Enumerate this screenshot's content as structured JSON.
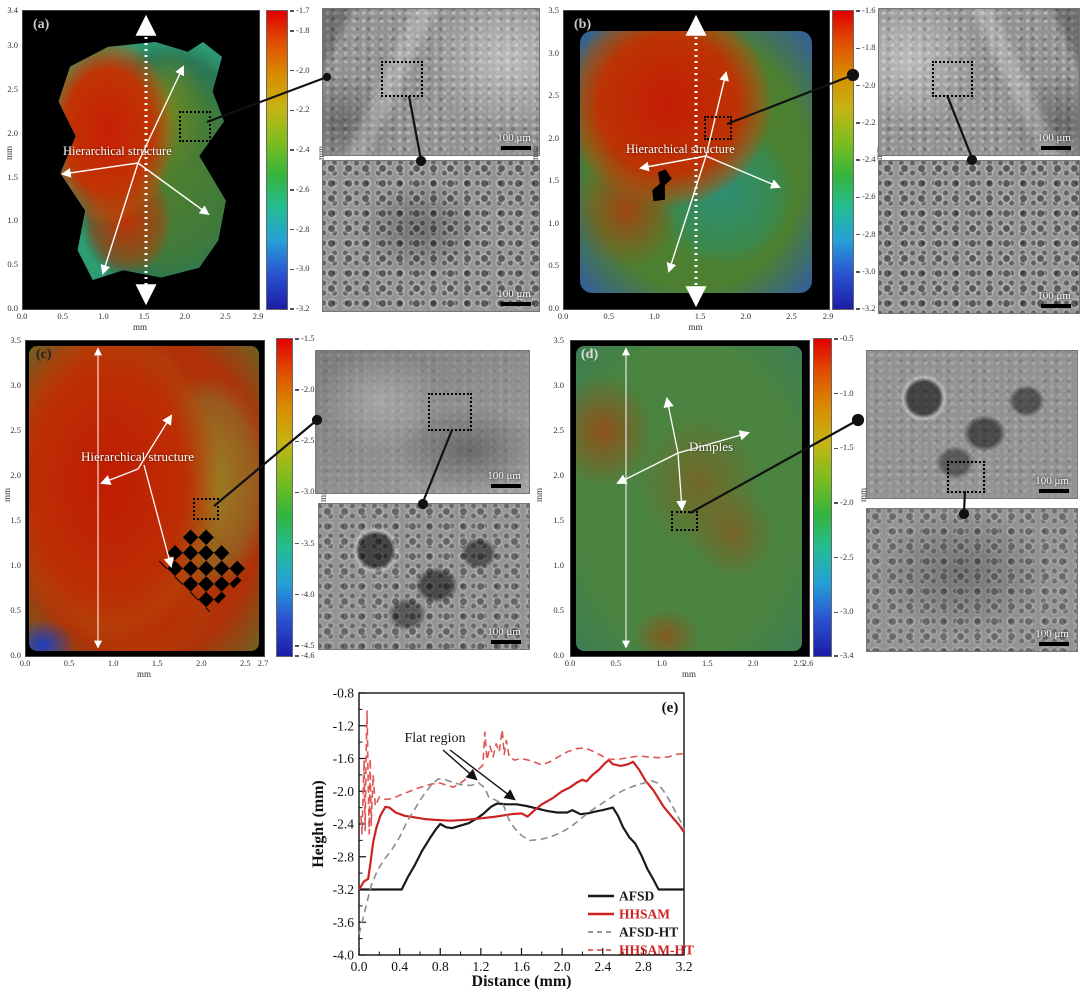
{
  "figure": {
    "panels": [
      {
        "id": "a",
        "label": "(a)",
        "annotation": "Hierarchical structure",
        "axis_unit": "mm",
        "x_ticks": [
          "0.0",
          "0.5",
          "1.0",
          "1.5",
          "2.0",
          "2.5",
          "2.9"
        ],
        "y_ticks": [
          "3.4",
          "3.0",
          "2.5",
          "2.0",
          "1.5",
          "1.0",
          "0.5",
          "0.0"
        ],
        "colorbar_unit": "mm",
        "colorbar_ticks": [
          "-1.7",
          "-1.8",
          "-2.0",
          "-2.2",
          "-2.4",
          "-2.6",
          "-2.8",
          "-3.0",
          "-3.2"
        ],
        "sem_scale": "100 μm"
      },
      {
        "id": "b",
        "label": "(b)",
        "annotation": "Hierarchical structure",
        "axis_unit": "mm",
        "x_ticks": [
          "0.0",
          "0.5",
          "1.0",
          "1.5",
          "2.0",
          "2.5",
          "2.9"
        ],
        "y_ticks": [
          "3.5",
          "3.0",
          "2.5",
          "2.0",
          "1.5",
          "1.0",
          "0.5",
          "0.0"
        ],
        "colorbar_unit": "mm",
        "colorbar_ticks": [
          "-1.6",
          "-1.8",
          "-2.0",
          "-2.2",
          "-2.4",
          "-2.6",
          "-2.8",
          "-3.0",
          "-3.2"
        ],
        "sem_scale": "100 μm"
      },
      {
        "id": "c",
        "label": "(c)",
        "annotation": "Hierarchical structure",
        "axis_unit": "mm",
        "x_ticks": [
          "0.0",
          "0.5",
          "1.0",
          "1.5",
          "2.0",
          "2.5",
          "2.7"
        ],
        "y_ticks": [
          "3.5",
          "3.0",
          "2.5",
          "2.0",
          "1.5",
          "1.0",
          "0.5",
          "0.0"
        ],
        "colorbar_unit": "mm",
        "colorbar_ticks": [
          "-1.5",
          "-2.0",
          "-2.5",
          "-3.0",
          "-3.5",
          "-4.0",
          "-4.5",
          "-4.6"
        ],
        "sem_scale": "100 μm"
      },
      {
        "id": "d",
        "label": "(d)",
        "annotation": "Dimples",
        "axis_unit": "mm",
        "x_ticks": [
          "0.0",
          "0.5",
          "1.0",
          "1.5",
          "2.0",
          "2.5",
          "2.6"
        ],
        "y_ticks": [
          "3.5",
          "3.0",
          "2.5",
          "2.0",
          "1.5",
          "1.0",
          "0.5",
          "0.0"
        ],
        "colorbar_unit": "mm",
        "colorbar_ticks": [
          "-0.5",
          "-1.0",
          "-1.5",
          "-2.0",
          "-2.5",
          "-3.0",
          "-3.4"
        ],
        "sem_scale": "100 μm"
      }
    ]
  },
  "chart_data": {
    "type": "line",
    "panel_label": "(e)",
    "xlabel": "Distance (mm)",
    "ylabel": "Height (mm)",
    "xlim": [
      0,
      3.2
    ],
    "ylim": [
      -4.0,
      -0.8
    ],
    "x_ticks": [
      "0.0",
      "0.4",
      "0.8",
      "1.2",
      "1.6",
      "2.0",
      "2.4",
      "2.8",
      "3.2"
    ],
    "y_ticks": [
      "-0.8",
      "-1.2",
      "-1.6",
      "-2.0",
      "-2.4",
      "-2.8",
      "-3.2",
      "-3.6",
      "-4.0"
    ],
    "grid": false,
    "legend_position": "lower right",
    "annotation": {
      "text": "Flat region"
    },
    "series": [
      {
        "name": "AFSD",
        "color": "#1a1a1a",
        "label_color": "#1a1a1a",
        "style": "solid",
        "points": [
          [
            0,
            -3.2
          ],
          [
            0.42,
            -3.2
          ],
          [
            0.48,
            -3.05
          ],
          [
            0.55,
            -2.9
          ],
          [
            0.62,
            -2.73
          ],
          [
            0.7,
            -2.57
          ],
          [
            0.76,
            -2.46
          ],
          [
            0.8,
            -2.4
          ],
          [
            0.86,
            -2.44
          ],
          [
            0.92,
            -2.45
          ],
          [
            1.0,
            -2.42
          ],
          [
            1.08,
            -2.39
          ],
          [
            1.15,
            -2.34
          ],
          [
            1.22,
            -2.28
          ],
          [
            1.3,
            -2.19
          ],
          [
            1.36,
            -2.15
          ],
          [
            1.45,
            -2.16
          ],
          [
            1.55,
            -2.16
          ],
          [
            1.65,
            -2.18
          ],
          [
            1.75,
            -2.21
          ],
          [
            1.85,
            -2.24
          ],
          [
            1.95,
            -2.26
          ],
          [
            2.05,
            -2.26
          ],
          [
            2.1,
            -2.23
          ],
          [
            2.18,
            -2.28
          ],
          [
            2.25,
            -2.27
          ],
          [
            2.32,
            -2.25
          ],
          [
            2.4,
            -2.23
          ],
          [
            2.5,
            -2.2
          ],
          [
            2.55,
            -2.3
          ],
          [
            2.6,
            -2.44
          ],
          [
            2.66,
            -2.56
          ],
          [
            2.72,
            -2.64
          ],
          [
            2.78,
            -2.78
          ],
          [
            2.84,
            -2.95
          ],
          [
            2.9,
            -3.08
          ],
          [
            2.95,
            -3.2
          ],
          [
            3.2,
            -3.2
          ]
        ]
      },
      {
        "name": "HHSAM",
        "color": "#cc2222",
        "label_color": "#cc2222",
        "style": "solid",
        "points": [
          [
            0,
            -3.2
          ],
          [
            0.05,
            -3.1
          ],
          [
            0.09,
            -3.07
          ],
          [
            0.11,
            -2.9
          ],
          [
            0.14,
            -2.62
          ],
          [
            0.17,
            -2.45
          ],
          [
            0.21,
            -2.3
          ],
          [
            0.26,
            -2.19
          ],
          [
            0.3,
            -2.2
          ],
          [
            0.36,
            -2.26
          ],
          [
            0.45,
            -2.3
          ],
          [
            0.55,
            -2.32
          ],
          [
            0.65,
            -2.34
          ],
          [
            0.75,
            -2.35
          ],
          [
            0.9,
            -2.36
          ],
          [
            1.05,
            -2.35
          ],
          [
            1.2,
            -2.33
          ],
          [
            1.35,
            -2.31
          ],
          [
            1.5,
            -2.28
          ],
          [
            1.6,
            -2.27
          ],
          [
            1.66,
            -2.31
          ],
          [
            1.72,
            -2.24
          ],
          [
            1.8,
            -2.16
          ],
          [
            1.9,
            -2.09
          ],
          [
            2.0,
            -2.0
          ],
          [
            2.08,
            -1.95
          ],
          [
            2.15,
            -1.89
          ],
          [
            2.2,
            -1.86
          ],
          [
            2.24,
            -1.88
          ],
          [
            2.3,
            -1.8
          ],
          [
            2.36,
            -1.74
          ],
          [
            2.42,
            -1.66
          ],
          [
            2.46,
            -1.62
          ],
          [
            2.5,
            -1.67
          ],
          [
            2.58,
            -1.69
          ],
          [
            2.65,
            -1.67
          ],
          [
            2.7,
            -1.64
          ],
          [
            2.76,
            -1.74
          ],
          [
            2.82,
            -1.87
          ],
          [
            2.9,
            -1.99
          ],
          [
            3.0,
            -2.19
          ],
          [
            3.08,
            -2.31
          ],
          [
            3.15,
            -2.41
          ],
          [
            3.2,
            -2.5
          ]
        ]
      },
      {
        "name": "AFSD-HT",
        "color": "#8c8c8c",
        "label_color": "#1a1a1a",
        "style": "dashed",
        "points": [
          [
            0,
            -3.75
          ],
          [
            0.06,
            -3.45
          ],
          [
            0.12,
            -3.15
          ],
          [
            0.18,
            -2.97
          ],
          [
            0.25,
            -2.83
          ],
          [
            0.32,
            -2.72
          ],
          [
            0.4,
            -2.56
          ],
          [
            0.47,
            -2.38
          ],
          [
            0.54,
            -2.24
          ],
          [
            0.6,
            -2.11
          ],
          [
            0.67,
            -1.99
          ],
          [
            0.73,
            -1.9
          ],
          [
            0.78,
            -1.85
          ],
          [
            0.85,
            -1.86
          ],
          [
            0.92,
            -1.89
          ],
          [
            1.0,
            -1.92
          ],
          [
            1.1,
            -1.93
          ],
          [
            1.18,
            -1.9
          ],
          [
            1.24,
            -1.96
          ],
          [
            1.28,
            -2.08
          ],
          [
            1.35,
            -2.11
          ],
          [
            1.42,
            -2.16
          ],
          [
            1.47,
            -2.33
          ],
          [
            1.53,
            -2.45
          ],
          [
            1.6,
            -2.54
          ],
          [
            1.68,
            -2.6
          ],
          [
            1.78,
            -2.59
          ],
          [
            1.88,
            -2.56
          ],
          [
            1.98,
            -2.51
          ],
          [
            2.08,
            -2.44
          ],
          [
            2.18,
            -2.34
          ],
          [
            2.28,
            -2.24
          ],
          [
            2.38,
            -2.16
          ],
          [
            2.5,
            -2.06
          ],
          [
            2.6,
            -1.99
          ],
          [
            2.7,
            -1.94
          ],
          [
            2.8,
            -1.9
          ],
          [
            2.88,
            -1.87
          ],
          [
            2.94,
            -1.9
          ],
          [
            3.0,
            -2.0
          ],
          [
            3.06,
            -2.12
          ],
          [
            3.12,
            -2.26
          ],
          [
            3.17,
            -2.38
          ],
          [
            3.2,
            -2.47
          ]
        ]
      },
      {
        "name": "HHSAM-HT",
        "color": "#e05555",
        "label_color": "#cc2222",
        "style": "dashed",
        "points": [
          [
            0.02,
            -2.3
          ],
          [
            0.03,
            -2.52
          ],
          [
            0.05,
            -1.62
          ],
          [
            0.06,
            -2.48
          ],
          [
            0.07,
            -1.55
          ],
          [
            0.08,
            -1.02
          ],
          [
            0.09,
            -1.85
          ],
          [
            0.1,
            -2.52
          ],
          [
            0.11,
            -1.6
          ],
          [
            0.12,
            -2.42
          ],
          [
            0.14,
            -1.8
          ],
          [
            0.16,
            -2.18
          ],
          [
            0.2,
            -2.07
          ],
          [
            0.26,
            -2.1
          ],
          [
            0.33,
            -2.09
          ],
          [
            0.4,
            -2.05
          ],
          [
            0.48,
            -2.01
          ],
          [
            0.56,
            -1.97
          ],
          [
            0.64,
            -1.94
          ],
          [
            0.72,
            -1.91
          ],
          [
            0.8,
            -1.9
          ],
          [
            0.87,
            -1.93
          ],
          [
            0.93,
            -1.95
          ],
          [
            1.0,
            -1.9
          ],
          [
            1.06,
            -1.84
          ],
          [
            1.12,
            -1.78
          ],
          [
            1.18,
            -1.73
          ],
          [
            1.22,
            -1.68
          ],
          [
            1.24,
            -1.28
          ],
          [
            1.26,
            -1.62
          ],
          [
            1.29,
            -1.45
          ],
          [
            1.32,
            -1.58
          ],
          [
            1.35,
            -1.42
          ],
          [
            1.38,
            -1.52
          ],
          [
            1.41,
            -1.25
          ],
          [
            1.43,
            -1.55
          ],
          [
            1.45,
            -1.38
          ],
          [
            1.48,
            -1.58
          ],
          [
            1.53,
            -1.62
          ],
          [
            1.6,
            -1.6
          ],
          [
            1.7,
            -1.63
          ],
          [
            1.8,
            -1.68
          ],
          [
            1.88,
            -1.64
          ],
          [
            1.96,
            -1.58
          ],
          [
            2.05,
            -1.52
          ],
          [
            2.14,
            -1.48
          ],
          [
            2.22,
            -1.47
          ],
          [
            2.3,
            -1.51
          ],
          [
            2.38,
            -1.56
          ],
          [
            2.46,
            -1.61
          ],
          [
            2.55,
            -1.61
          ],
          [
            2.65,
            -1.59
          ],
          [
            2.75,
            -1.57
          ],
          [
            2.85,
            -1.58
          ],
          [
            2.95,
            -1.59
          ],
          [
            3.05,
            -1.58
          ],
          [
            3.12,
            -1.55
          ],
          [
            3.2,
            -1.54
          ]
        ]
      }
    ]
  }
}
